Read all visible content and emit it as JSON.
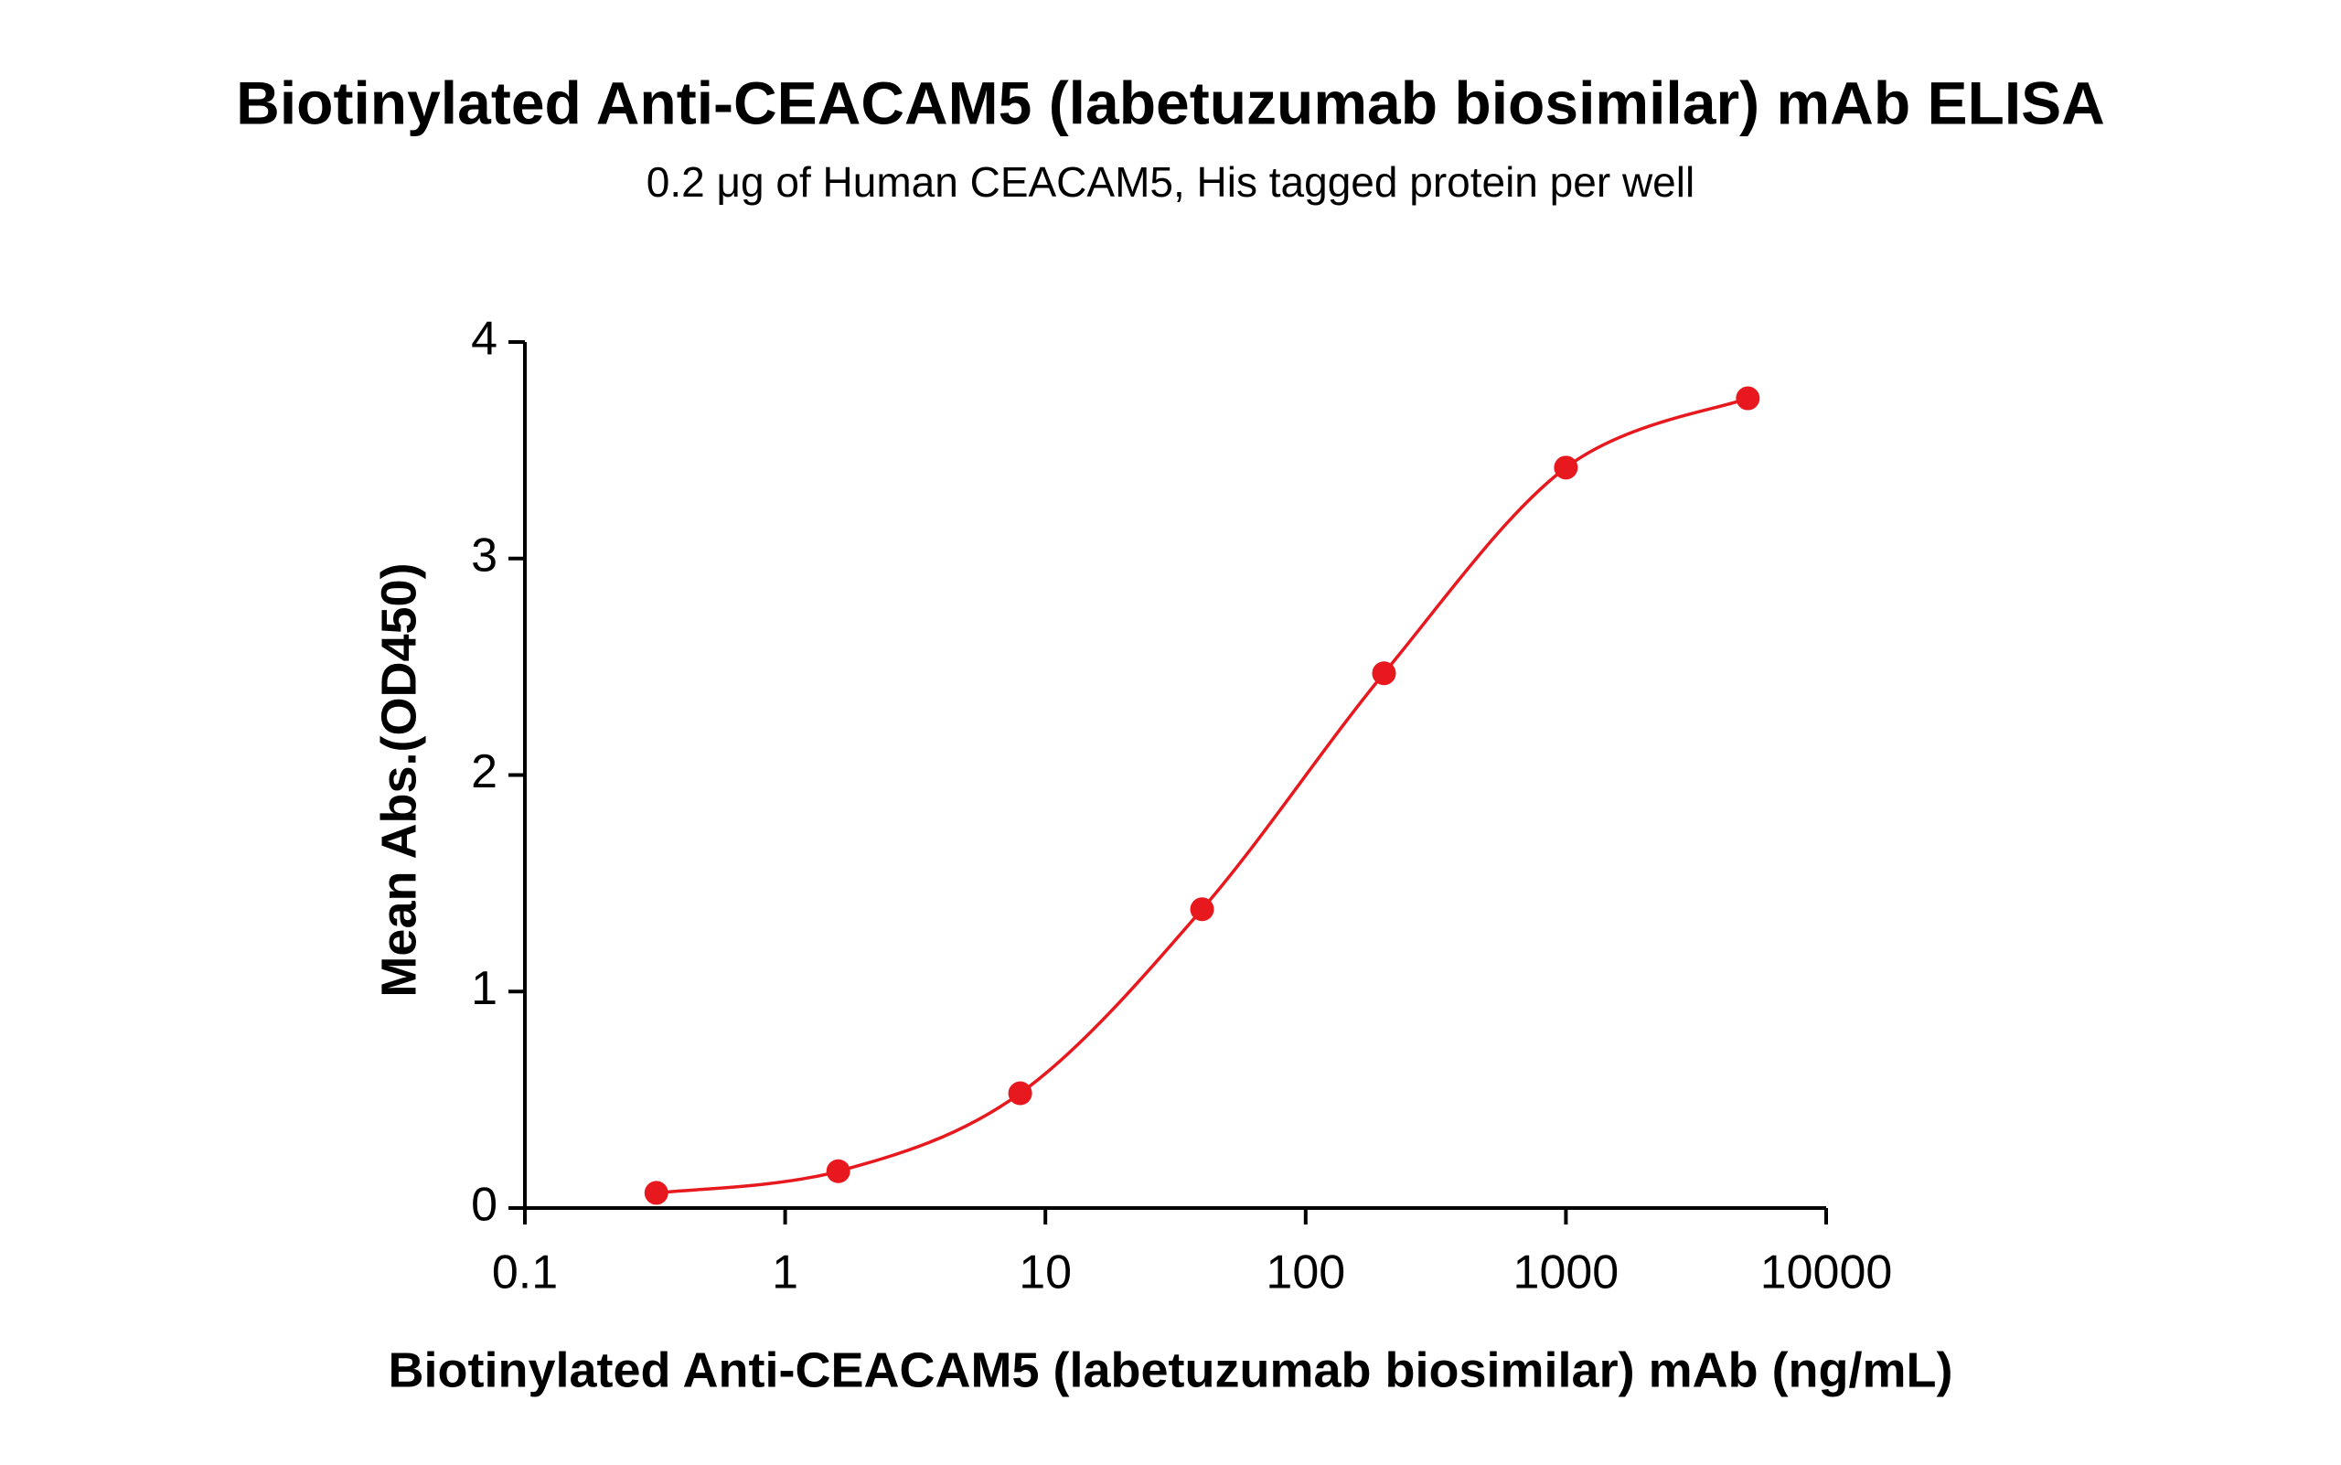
{
  "chart_data": {
    "type": "line",
    "title": "Biotinylated Anti-CEACAM5 (labetuzumab biosimilar) mAb ELISA",
    "subtitle": "0.2 μg of Human CEACAM5, His tagged protein per well",
    "x_label": "Biotinylated Anti-CEACAM5 (labetuzumab biosimilar) mAb (ng/mL)",
    "y_label": "Mean Abs.(OD450)",
    "x": [
      0.32,
      1.6,
      8,
      40,
      200,
      1000,
      5000
    ],
    "series": [
      {
        "name": "Mean Abs.(OD450)",
        "color": "#e8191e",
        "values": [
          0.07,
          0.17,
          0.53,
          1.38,
          2.47,
          3.42,
          3.74
        ]
      }
    ],
    "xscale": "log",
    "xlim": [
      0.1,
      10000
    ],
    "xticks": [
      0.1,
      1,
      10,
      100,
      1000,
      10000
    ],
    "ylim": [
      0,
      4
    ],
    "yticks": [
      0,
      1,
      2,
      3,
      4
    ],
    "grid": false
  }
}
